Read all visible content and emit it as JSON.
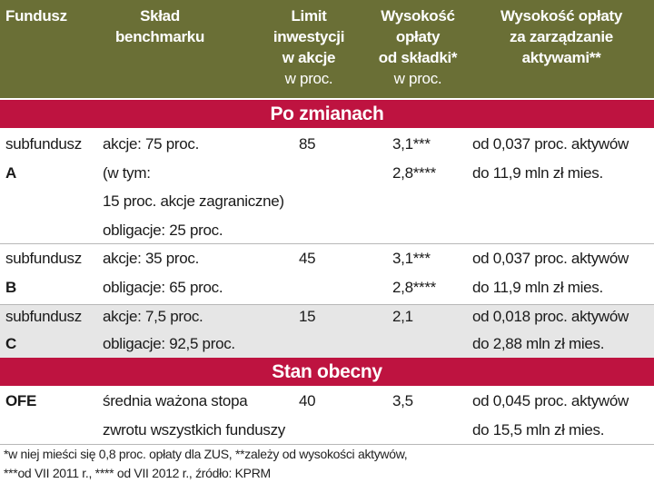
{
  "header": {
    "col_fundusz": "Fundusz",
    "col_sklad": [
      "Skład",
      "benchmarku"
    ],
    "col_limit": [
      "Limit",
      "inwestycji",
      "w akcje"
    ],
    "col_limit_unit": "w proc.",
    "col_oplata": [
      "Wysokość",
      "opłaty",
      "od składki*"
    ],
    "col_oplata_unit": "w proc.",
    "col_zarzadzanie": [
      "Wysokość opłaty",
      "za zarządzanie",
      "aktywami**"
    ]
  },
  "sections": {
    "po_zmianach": "Po zmianach",
    "stan_obecny": "Stan obecny"
  },
  "rows": [
    {
      "fund": [
        "subfundusz",
        "A"
      ],
      "benchmark": [
        "akcje: 75 proc.",
        "(w tym:",
        "15 proc. akcje zagraniczne)",
        "obligacje: 25 proc."
      ],
      "limit": "85",
      "fee": [
        "3,1***",
        "2,8****"
      ],
      "mgmt": [
        "od 0,037 proc. aktywów",
        "do 11,9 mln zł mies."
      ]
    },
    {
      "fund": [
        "subfundusz",
        "B"
      ],
      "benchmark": [
        "akcje: 35 proc.",
        "obligacje: 65 proc."
      ],
      "limit": "45",
      "fee": [
        "3,1***",
        "2,8****"
      ],
      "mgmt": [
        "od 0,037 proc. aktywów",
        "do 11,9 mln zł mies."
      ]
    },
    {
      "fund": [
        "subfundusz",
        "C"
      ],
      "benchmark": [
        "akcje: 7,5 proc.",
        "obligacje: 92,5 proc."
      ],
      "limit": "15",
      "fee": [
        "2,1"
      ],
      "mgmt": [
        "od 0,018 proc. aktywów",
        "do 2,88 mln zł mies."
      ]
    },
    {
      "fund": [
        "OFE"
      ],
      "benchmark": [
        "średnia ważona stopa",
        "zwrotu wszystkich funduszy"
      ],
      "limit": "40",
      "fee": [
        "3,5"
      ],
      "mgmt": [
        "od 0,045 proc. aktywów",
        "do 15,5 mln zł mies."
      ]
    }
  ],
  "footnotes": [
    "*w niej mieści się 0,8 proc. opłaty dla ZUS, **zależy od wysokości aktywów,",
    "***od VII 2011 r., **** od VII 2012 r., źródło: KPRM"
  ],
  "colors": {
    "header_bg": "#6a6f36",
    "section_bg": "#be1340",
    "row_shade": "#e6e6e6"
  }
}
